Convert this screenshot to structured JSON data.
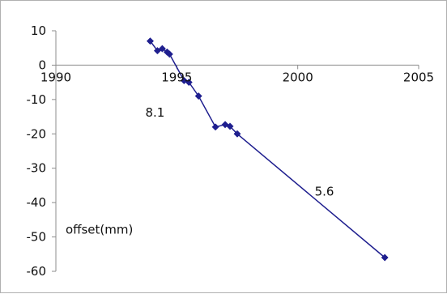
{
  "chart_data": {
    "type": "scatter",
    "title": "",
    "xlabel": "",
    "ylabel": "",
    "xlim": [
      1990,
      2005
    ],
    "ylim": [
      -60,
      10
    ],
    "x_ticks": [
      1990,
      1995,
      2000,
      2005
    ],
    "y_ticks": [
      10,
      0,
      -10,
      -20,
      -30,
      -40,
      -50,
      -60
    ],
    "grid": false,
    "legend": "none",
    "colors": {
      "series": "#1F1F8F",
      "axis": "#8c8c8c"
    },
    "series": [
      {
        "points": [
          {
            "x": 1993.9,
            "y": 7
          },
          {
            "x": 1994.2,
            "y": 4.2
          },
          {
            "x": 1994.4,
            "y": 4.8
          },
          {
            "x": 1994.6,
            "y": 3.8
          },
          {
            "x": 1994.7,
            "y": 3.2
          },
          {
            "x": 1995.3,
            "y": -4.5
          },
          {
            "x": 1995.5,
            "y": -5
          },
          {
            "x": 1995.9,
            "y": -9
          },
          {
            "x": 1996.6,
            "y": -18
          },
          {
            "x": 1997.0,
            "y": -17.3
          },
          {
            "x": 1997.2,
            "y": -17.8
          },
          {
            "x": 1997.5,
            "y": -20
          },
          {
            "x": 2003.6,
            "y": -56
          }
        ]
      }
    ],
    "annotations": [
      {
        "text": "8.1",
        "x": 1993.7,
        "y": -15
      },
      {
        "text": "5.6",
        "x": 2000.7,
        "y": -38
      },
      {
        "text": "offset(mm)",
        "x": 1990.4,
        "y": -49
      }
    ]
  }
}
